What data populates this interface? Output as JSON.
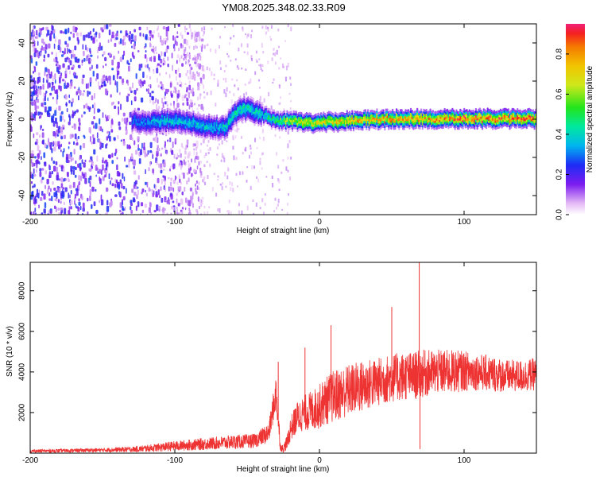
{
  "title": "YM08.2025.348.02.33.R09",
  "colors": {
    "axes": "#000000",
    "snr_line": "#ee3333",
    "spectro_base": "#7b1cf0"
  },
  "chart_data": [
    {
      "type": "heatmap",
      "name": "spectrogram",
      "xlabel": "Height of straight line (km)",
      "ylabel": "Frequency (Hz)",
      "xlim": [
        -200,
        150
      ],
      "ylim": [
        -50,
        50
      ],
      "xticks": [
        -200,
        -100,
        0,
        100
      ],
      "xtick_labels": [
        "-200",
        "-100",
        "0",
        "100"
      ],
      "yticks": [
        40,
        20,
        0,
        -20,
        -40
      ],
      "ytick_labels": [
        "40",
        "20",
        "0",
        "-20",
        "-40"
      ],
      "colorbar": {
        "label": "Normalized spectral amplitude",
        "range": [
          0,
          0.95
        ],
        "ticks": [
          0.0,
          0.2,
          0.4,
          0.6,
          0.8
        ],
        "tick_labels": [
          "0.0",
          "0.2",
          "0.4",
          "0.6",
          "0.8"
        ]
      },
      "ridge": {
        "x": [
          -130,
          -120,
          -110,
          -100,
          -90,
          -80,
          -75,
          -70,
          -65,
          -60,
          -55,
          -50,
          -40,
          -30,
          -20,
          -10,
          0,
          20,
          50,
          80,
          100,
          120,
          150
        ],
        "center_hz": [
          0,
          -1,
          0,
          0,
          -1,
          -3,
          -3,
          -4,
          -3,
          3,
          6,
          6,
          3,
          0,
          0,
          -1,
          -1,
          0,
          1,
          1,
          1,
          1,
          1
        ],
        "peak_amplitude": [
          0.3,
          0.35,
          0.4,
          0.4,
          0.4,
          0.4,
          0.4,
          0.4,
          0.45,
          0.45,
          0.45,
          0.45,
          0.45,
          0.55,
          0.7,
          0.75,
          0.75,
          0.8,
          0.85,
          0.85,
          0.9,
          0.9,
          0.9
        ]
      },
      "noise_region_x": [
        -200,
        -120
      ]
    },
    {
      "type": "line",
      "name": "snr",
      "xlabel": "Height of straight line (km)",
      "ylabel": "SNR (10 * v/v)",
      "xlim": [
        -200,
        150
      ],
      "ylim": [
        0,
        9400
      ],
      "xticks": [
        -200,
        -100,
        0,
        100
      ],
      "xtick_labels": [
        "-200",
        "-100",
        "0",
        "100"
      ],
      "yticks": [
        2000,
        4000,
        6000,
        8000
      ],
      "ytick_labels": [
        "2000",
        "4000",
        "6000",
        "8000"
      ],
      "series": [
        {
          "name": "SNR",
          "x": [
            -200,
            -150,
            -125,
            -100,
            -80,
            -60,
            -45,
            -35,
            -30,
            -28,
            -27,
            -25,
            -22,
            -20,
            -15,
            -10,
            -5,
            0,
            5,
            10,
            20,
            30,
            40,
            50,
            60,
            65,
            70,
            80,
            90,
            100,
            110,
            120,
            130,
            140,
            150
          ],
          "mean": [
            100,
            150,
            200,
            350,
            450,
            550,
            600,
            1000,
            3000,
            1200,
            300,
            200,
            600,
            1200,
            1800,
            2000,
            2100,
            2300,
            2600,
            2800,
            3100,
            3300,
            3500,
            3700,
            3800,
            3800,
            3900,
            4000,
            4000,
            4050,
            4000,
            3900,
            3800,
            3800,
            3900
          ],
          "spread": [
            80,
            100,
            150,
            250,
            300,
            350,
            350,
            500,
            900,
            600,
            200,
            200,
            400,
            600,
            800,
            900,
            1000,
            1100,
            1200,
            1300,
            1300,
            1300,
            1200,
            1200,
            1200,
            1200,
            1200,
            1100,
            1100,
            1000,
            900,
            900,
            800,
            800,
            800
          ],
          "spikes": [
            {
              "x": -28.5,
              "y": 4500
            },
            {
              "x": -10,
              "y": 5200
            },
            {
              "x": 8,
              "y": 6300
            },
            {
              "x": 50,
              "y": 7200
            },
            {
              "x": 69,
              "y": 9400
            },
            {
              "x": 69.5,
              "y": 200
            }
          ]
        }
      ]
    }
  ]
}
